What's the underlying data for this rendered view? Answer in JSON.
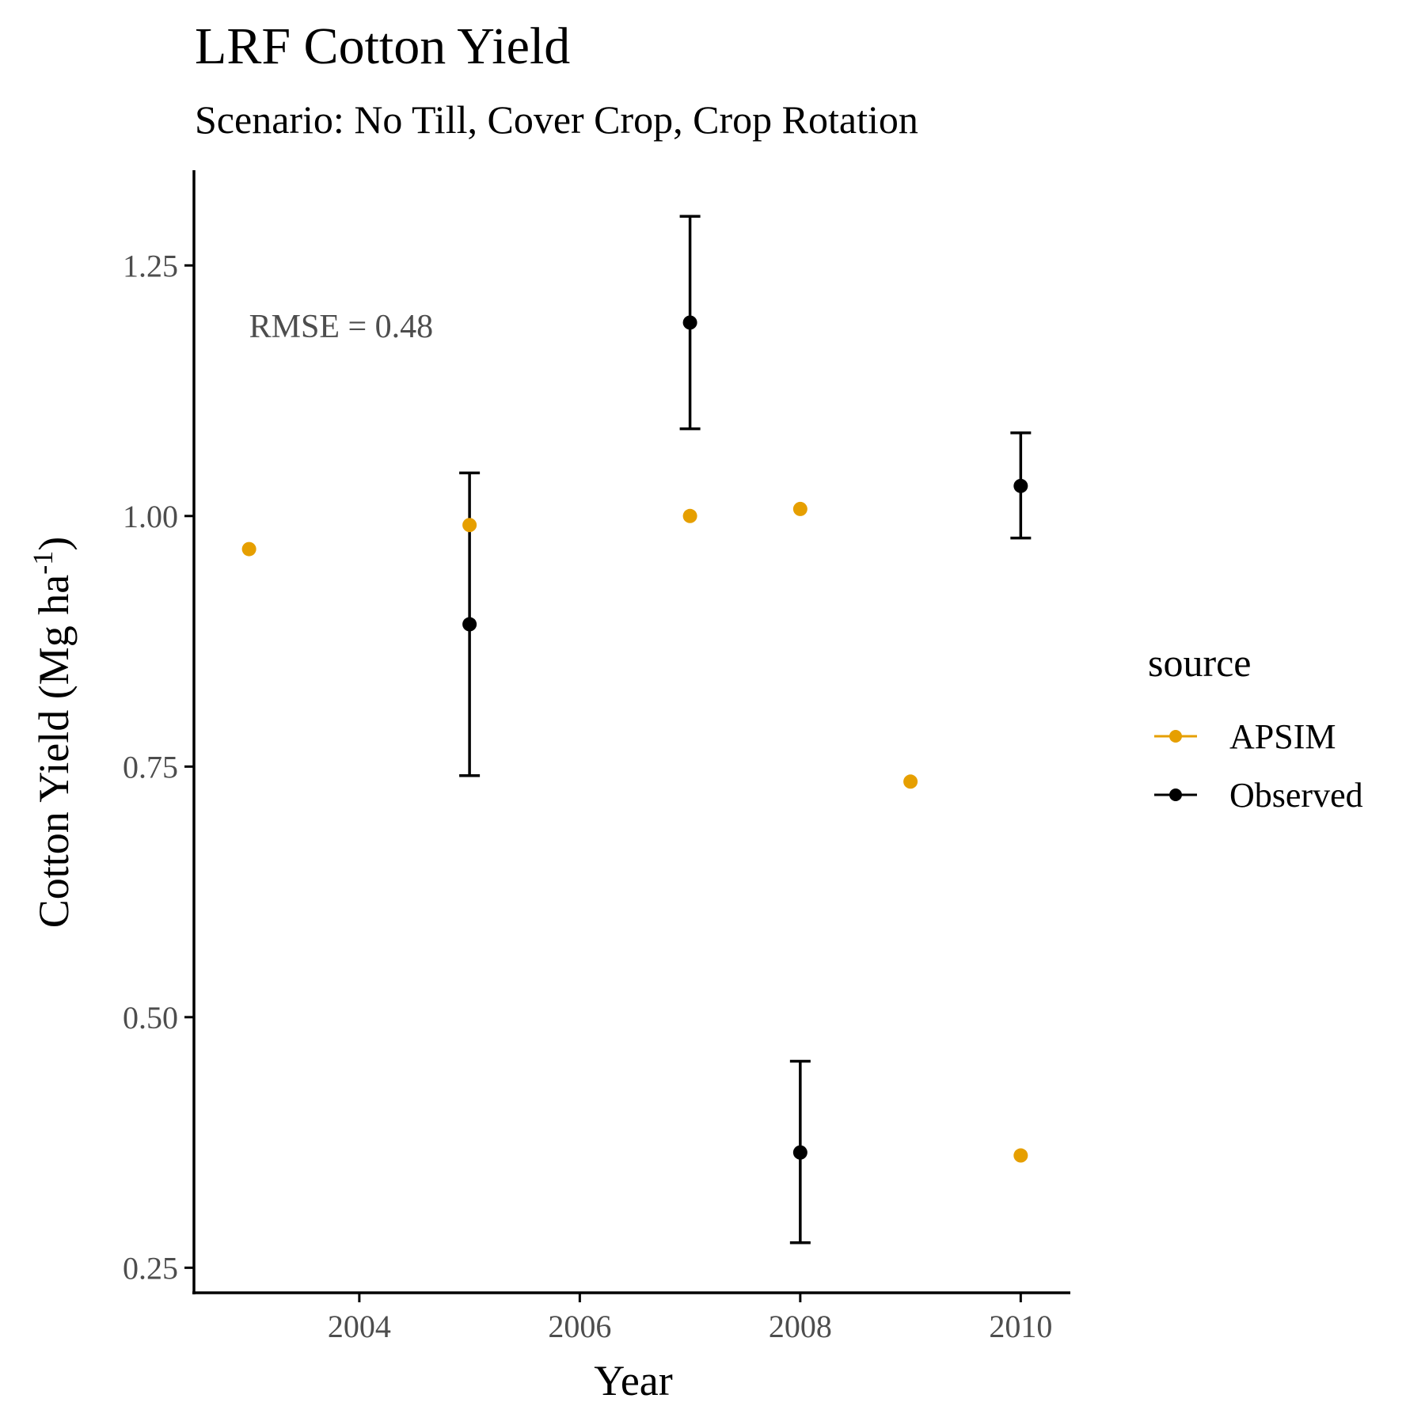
{
  "chart_data": {
    "type": "scatter",
    "title": "LRF Cotton Yield",
    "subtitle": "Scenario: No Till, Cover Crop, Crop Rotation",
    "xlabel": "Year",
    "ylabel_main": "Cotton Yield (Mg ha",
    "ylabel_sup": "-1",
    "ylabel_close": ")",
    "xlim": [
      2002.5,
      2010.45
    ],
    "ylim": [
      0.225,
      1.345
    ],
    "x_ticks": [
      2004,
      2006,
      2008,
      2010
    ],
    "x_tick_labels": [
      "2004",
      "2006",
      "2008",
      "2010"
    ],
    "y_ticks": [
      0.25,
      0.5,
      0.75,
      1.0,
      1.25
    ],
    "y_tick_labels": [
      "0.25",
      "0.50",
      "0.75",
      "1.00",
      "1.25"
    ],
    "grid": false,
    "annotation": {
      "text": "RMSE = 0.48",
      "x": 2003.0,
      "y": 1.19
    },
    "legend": {
      "title": "source",
      "position": "right",
      "entries": [
        {
          "label": "APSIM",
          "color": "#E69F00"
        },
        {
          "label": "Observed",
          "color": "#000000"
        }
      ]
    },
    "series": [
      {
        "name": "APSIM",
        "color": "#E69F00",
        "points": [
          {
            "x": 2003,
            "y": 0.967
          },
          {
            "x": 2005,
            "y": 0.991
          },
          {
            "x": 2007,
            "y": 1.0
          },
          {
            "x": 2008,
            "y": 1.007
          },
          {
            "x": 2009,
            "y": 0.735
          },
          {
            "x": 2010,
            "y": 0.362
          }
        ]
      },
      {
        "name": "Observed",
        "color": "#000000",
        "points": [
          {
            "x": 2005,
            "y": 0.892,
            "ymin": 0.741,
            "ymax": 1.043
          },
          {
            "x": 2007,
            "y": 1.193,
            "ymin": 1.087,
            "ymax": 1.299
          },
          {
            "x": 2008,
            "y": 0.365,
            "ymin": 0.275,
            "ymax": 0.456
          },
          {
            "x": 2010,
            "y": 1.03,
            "ymin": 0.978,
            "ymax": 1.083
          }
        ]
      }
    ]
  }
}
